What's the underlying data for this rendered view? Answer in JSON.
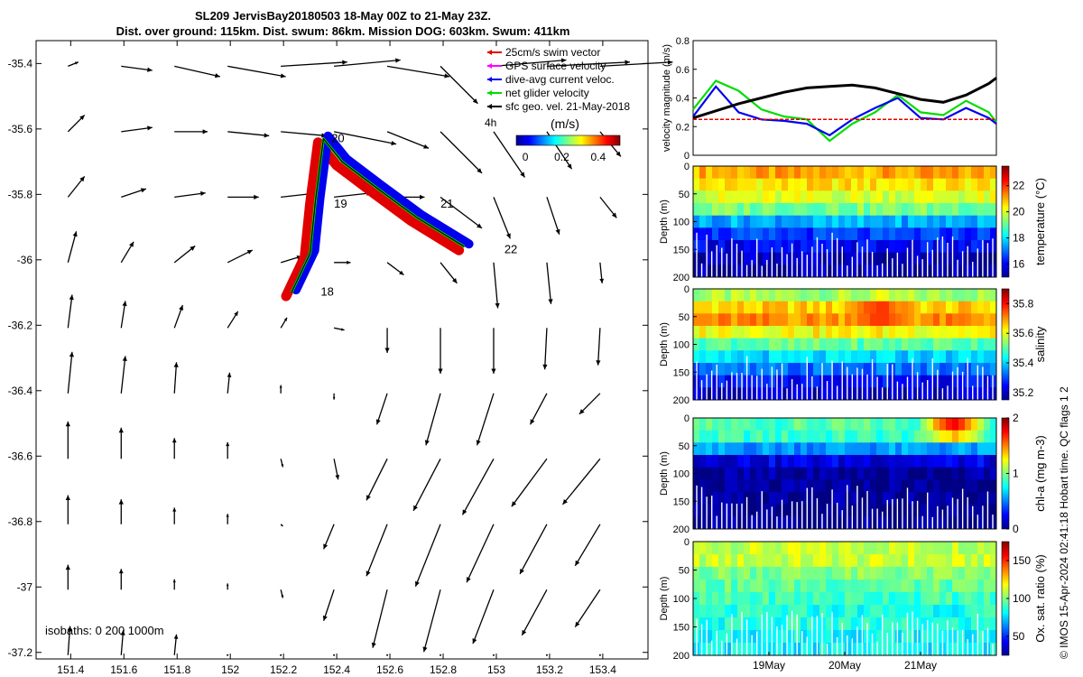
{
  "titles": {
    "line1": "SL209 JervisBay20180503 18-May 00Z to 21-May 23Z.",
    "line2": "Dist. over ground: 115km. Dist. swum: 86km. Mission DOG: 603km. Swum: 411km"
  },
  "side_note": "© IMOS 15-Apr-2024 02:41:18 Hobart time. QC flags 1  2",
  "chart_data": [
    {
      "type": "vector-map",
      "xticks": [
        "151.4",
        "151.6",
        "151.8",
        "152",
        "152.2",
        "152.4",
        "152.6",
        "152.8",
        "153",
        "153.2",
        "153.4"
      ],
      "yticks": [
        "-35.4",
        "-35.6",
        "-35.8",
        "-36",
        "-36.2",
        "-36.4",
        "-36.6",
        "-36.8",
        "-37",
        "-37.2"
      ],
      "xlim": [
        151.27,
        153.57
      ],
      "ylim": [
        -37.22,
        -35.33
      ],
      "legend": {
        "items": [
          {
            "label": "25cm/s swim vector",
            "color": "#e00000"
          },
          {
            "label": "GPS surface velocity",
            "color": "#ff00ff"
          },
          {
            "label": "dive-avg current veloc.",
            "color": "#0000ee"
          },
          {
            "label": "net glider velocity",
            "color": "#00dd00"
          },
          {
            "label": "sfc geo. vel. 21-May-2018",
            "color": "#000000"
          }
        ],
        "position": "top-right"
      },
      "time_scale_label": "4h",
      "colorbar": {
        "label": "(m/s)",
        "ticks": [
          "0",
          "0.2",
          "0.4"
        ],
        "range": [
          -0.05,
          0.52
        ]
      },
      "day_labels": [
        {
          "text": "18",
          "lon": 152.34,
          "lat": -36.11
        },
        {
          "text": "19",
          "lon": 152.39,
          "lat": -35.84
        },
        {
          "text": "20",
          "lon": 152.38,
          "lat": -35.64
        },
        {
          "text": "21",
          "lon": 152.79,
          "lat": -35.84
        },
        {
          "text": "22",
          "lon": 153.03,
          "lat": -35.98
        }
      ],
      "isobaths_label": "isobaths: 0   200  1000m",
      "track": [
        [
          152.23,
          -36.1
        ],
        [
          152.3,
          -35.98
        ],
        [
          152.32,
          -35.82
        ],
        [
          152.35,
          -35.63
        ],
        [
          152.42,
          -35.7
        ],
        [
          152.55,
          -35.78
        ],
        [
          152.7,
          -35.87
        ],
        [
          152.88,
          -35.96
        ]
      ],
      "vectors": {
        "lons": [
          151.4,
          151.6,
          151.8,
          152.0,
          152.2,
          152.4,
          152.6,
          152.8,
          153.0,
          153.2,
          153.4
        ],
        "lats": [
          -35.4,
          -35.6,
          -35.8,
          -36.0,
          -36.2,
          -36.4,
          -36.6,
          -36.8,
          -37.0,
          -37.2
        ],
        "u": [
          [
            0.05,
            0.15,
            0.22,
            0.28,
            0.32,
            0.32,
            0.3,
            0.18,
            0.35,
            0.4,
            0.35
          ],
          [
            0.08,
            0.15,
            0.16,
            0.2,
            0.22,
            0.3,
            0.2,
            0.2,
            0.15,
            0.12,
            0.1
          ],
          [
            0.08,
            0.12,
            0.15,
            0.15,
            0.18,
            0.18,
            0.18,
            0.2,
            0.08,
            0.06,
            0.08
          ],
          [
            0.04,
            0.06,
            0.1,
            0.12,
            0.1,
            0.08,
            0.08,
            0.08,
            0.02,
            0.02,
            0.01
          ],
          [
            0.02,
            0.02,
            0.04,
            0.05,
            0.03,
            0.05,
            0.0,
            0.0,
            0.0,
            -0.01,
            -0.01
          ],
          [
            0.02,
            0.02,
            0.01,
            0.01,
            0.0,
            0.0,
            -0.05,
            -0.07,
            -0.08,
            -0.08,
            -0.1
          ],
          [
            0.0,
            0.0,
            0.0,
            0.0,
            0.01,
            0.02,
            -0.1,
            -0.13,
            -0.15,
            -0.17,
            -0.18
          ],
          [
            0.0,
            0.0,
            0.0,
            0.0,
            0.01,
            -0.05,
            -0.1,
            -0.12,
            -0.13,
            -0.13,
            -0.12
          ],
          [
            0.0,
            0.0,
            0.0,
            0.0,
            0.01,
            -0.05,
            -0.07,
            -0.08,
            -0.1,
            -0.12,
            -0.12
          ],
          [
            0.01,
            0.01,
            0.01,
            0.0,
            0.0,
            0.0,
            0.0,
            0.0,
            0.0,
            0.0,
            0.0
          ]
        ],
        "v": [
          [
            0.02,
            -0.02,
            -0.05,
            -0.05,
            0.02,
            0.03,
            -0.05,
            -0.18,
            0.03,
            0.02,
            0.02
          ],
          [
            0.08,
            0.02,
            0.0,
            -0.02,
            -0.02,
            -0.06,
            -0.08,
            -0.2,
            -0.22,
            -0.18,
            -0.12
          ],
          [
            0.1,
            0.04,
            0.02,
            0.0,
            0.02,
            0.02,
            0.0,
            -0.15,
            -0.2,
            -0.18,
            -0.1
          ],
          [
            0.15,
            0.1,
            0.08,
            0.06,
            0.03,
            0.0,
            -0.06,
            -0.1,
            -0.22,
            -0.2,
            -0.1
          ],
          [
            0.16,
            0.13,
            0.11,
            0.08,
            0.05,
            -0.01,
            -0.12,
            -0.22,
            -0.22,
            -0.2,
            -0.18
          ],
          [
            0.2,
            0.18,
            0.15,
            0.1,
            0.04,
            -0.03,
            -0.15,
            -0.25,
            -0.25,
            -0.15,
            -0.1
          ],
          [
            0.18,
            0.15,
            0.1,
            0.08,
            -0.04,
            -0.1,
            -0.2,
            -0.25,
            -0.27,
            -0.23,
            -0.22
          ],
          [
            0.14,
            0.12,
            0.08,
            0.05,
            -0.01,
            -0.12,
            -0.25,
            -0.3,
            -0.28,
            -0.24,
            -0.2
          ],
          [
            0.12,
            0.1,
            0.05,
            0.03,
            -0.04,
            -0.15,
            -0.28,
            -0.3,
            -0.26,
            -0.22,
            -0.18
          ],
          [
            0.14,
            0.12,
            0.1,
            0.0,
            0.0,
            0.0,
            0.0,
            0.0,
            0.0,
            0.0,
            0.0
          ]
        ]
      }
    },
    {
      "type": "line",
      "ylabel": "velocity magnitude (m/s)",
      "ylim": [
        0,
        0.8
      ],
      "yticks": [
        "0",
        "0.2",
        "0.4",
        "0.6",
        "0.8"
      ],
      "x": [
        0,
        0.3,
        0.6,
        0.9,
        1.2,
        1.5,
        1.8,
        2.1,
        2.4,
        2.7,
        3.0,
        3.3,
        3.6,
        3.9,
        4.0
      ],
      "series": [
        {
          "color": "#00dd00",
          "values": [
            0.32,
            0.52,
            0.45,
            0.32,
            0.27,
            0.25,
            0.1,
            0.22,
            0.3,
            0.42,
            0.3,
            0.28,
            0.38,
            0.3,
            0.23
          ]
        },
        {
          "color": "#0000ee",
          "values": [
            0.27,
            0.48,
            0.3,
            0.25,
            0.24,
            0.22,
            0.14,
            0.25,
            0.33,
            0.4,
            0.26,
            0.25,
            0.33,
            0.26,
            0.22
          ]
        },
        {
          "color": "#000000",
          "values": [
            0.26,
            0.31,
            0.36,
            0.4,
            0.44,
            0.47,
            0.48,
            0.49,
            0.47,
            0.43,
            0.39,
            0.37,
            0.42,
            0.5,
            0.54
          ]
        },
        {
          "color": "#e00000",
          "values": [
            0.25,
            0.25,
            0.25,
            0.25,
            0.25,
            0.25,
            0.25,
            0.25,
            0.25,
            0.25,
            0.25,
            0.25,
            0.25,
            0.25,
            0.25
          ]
        }
      ]
    },
    {
      "type": "heatmap",
      "name": "temperature",
      "ylabel": "Depth (m)",
      "cbar_label": "temperature (°C)",
      "cbar_ticks": [
        "16",
        "18",
        "20",
        "22"
      ],
      "cbar_range": [
        15,
        23.5
      ],
      "yticks": [
        "0",
        "50",
        "100",
        "150",
        "200"
      ],
      "profile": [
        21,
        20.5,
        20,
        19.2,
        17.5,
        16.5,
        16,
        15.5,
        15.3
      ],
      "features": []
    },
    {
      "type": "heatmap",
      "name": "salinity",
      "ylabel": "Depth (m)",
      "cbar_label": "salinity",
      "cbar_ticks": [
        "35.2",
        "35.4",
        "35.6",
        "35.8"
      ],
      "cbar_range": [
        35.15,
        35.9
      ],
      "yticks": [
        "0",
        "50",
        "100",
        "150",
        "200"
      ],
      "profile": [
        35.55,
        35.65,
        35.7,
        35.62,
        35.5,
        35.4,
        35.32,
        35.25,
        35.2
      ],
      "features": [
        {
          "x": 0.6,
          "depth": 30,
          "value": 35.8
        }
      ]
    },
    {
      "type": "heatmap",
      "name": "chl-a",
      "ylabel": "Depth (m)",
      "cbar_label": "chl-a (mg m-3)",
      "cbar_ticks": [
        "0",
        "1",
        "2"
      ],
      "cbar_range": [
        0,
        2
      ],
      "yticks": [
        "0",
        "50",
        "100",
        "150",
        "200"
      ],
      "profile": [
        0.9,
        0.85,
        0.55,
        0.2,
        0.05,
        0.03,
        0.03,
        0.02,
        0.02
      ],
      "features": [
        {
          "x": 0.85,
          "depth": 5,
          "value": 1.9
        }
      ]
    },
    {
      "type": "heatmap",
      "name": "oxygen",
      "ylabel": "Depth (m)",
      "cbar_label": "Ox. sat. ratio (%)",
      "cbar_ticks": [
        "50",
        "100",
        "150"
      ],
      "cbar_range": [
        25,
        175
      ],
      "yticks": [
        "0",
        "50",
        "100",
        "150",
        "200"
      ],
      "profile": [
        110,
        110,
        100,
        95,
        90,
        85,
        85,
        82,
        80
      ],
      "features": []
    },
    {
      "type": "axis",
      "xticks": [
        "19May",
        "20May",
        "21May"
      ]
    }
  ]
}
